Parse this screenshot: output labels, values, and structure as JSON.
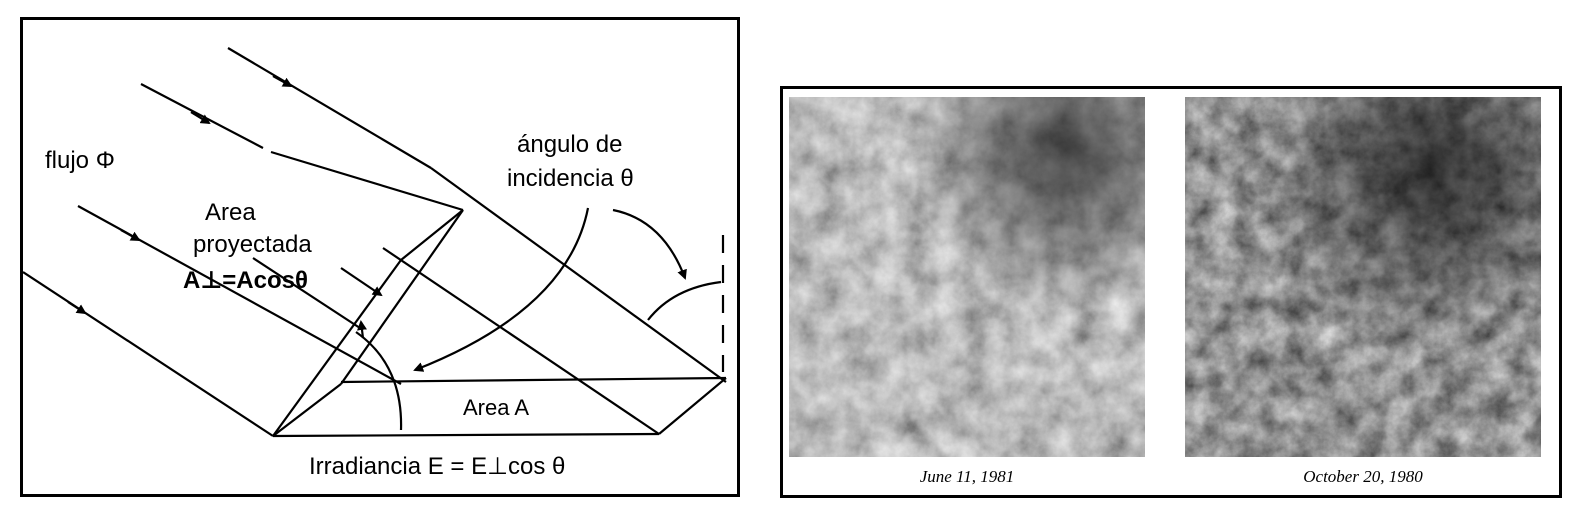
{
  "diagram": {
    "flux_label": "flujo Φ",
    "angle_label_line1": "ángulo de",
    "angle_label_line2": "incidencia θ",
    "projected_line1": "Area",
    "projected_line2": "proyectada",
    "projected_formula": "A⊥=Acosθ",
    "area_label": "Area  A",
    "irradiance_label": "Irradiancia  E = E⊥cos θ"
  },
  "photos": {
    "left_caption": "June 11, 1981",
    "right_caption": "October 20, 1980"
  }
}
